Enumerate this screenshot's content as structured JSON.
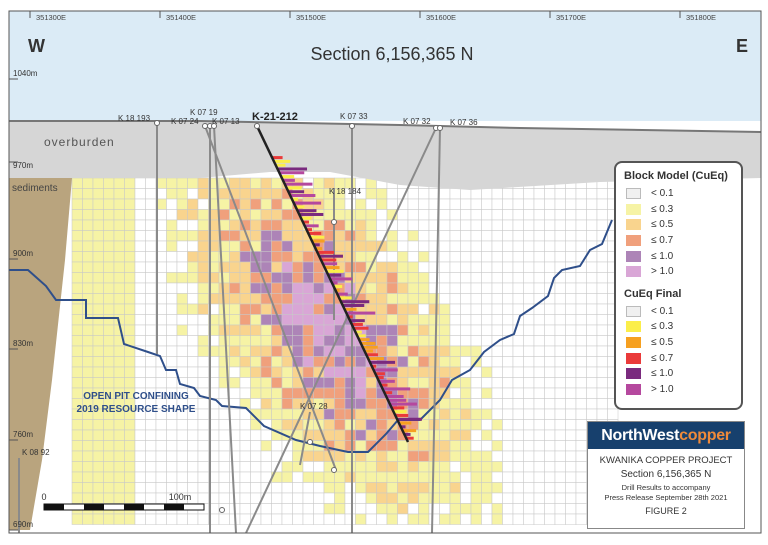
{
  "section_title": "Section 6,156,365 N",
  "compass": {
    "west": "W",
    "east": "E"
  },
  "eastings": [
    "351300E",
    "351400E",
    "351500E",
    "351600E",
    "351700E",
    "351800E"
  ],
  "elevations": [
    "1040m",
    "970m",
    "900m",
    "830m",
    "760m",
    "690m"
  ],
  "units": {
    "overburden": "overburden",
    "sediments": "sediments"
  },
  "pit_label": [
    "OPEN PIT CONFINING",
    "2019 RESOURCE SHAPE"
  ],
  "holes": {
    "main": "K-21-212",
    "others": [
      "K 18 193",
      "K 07 24",
      "K 07 19",
      "K 07 13",
      "K 07 33",
      "K 07 32",
      "K 07 36",
      "K 18 184",
      "K 07 28",
      "K 08 92"
    ]
  },
  "scale_bar": {
    "start": "0",
    "end": "100m"
  },
  "legend": {
    "block_title": "Block Model (CuEq)",
    "block_items": [
      {
        "label": "< 0.1",
        "color": "#f0f0f0"
      },
      {
        "label": "≤ 0.3",
        "color": "#f6f3a5"
      },
      {
        "label": "≤ 0.5",
        "color": "#f9d48e"
      },
      {
        "label": "≤ 0.7",
        "color": "#f0a07c"
      },
      {
        "label": "≤ 1.0",
        "color": "#ad84b7"
      },
      {
        "label": "> 1.0",
        "color": "#d9a6d6"
      }
    ],
    "final_title": "CuEq Final",
    "final_items": [
      {
        "label": "< 0.1",
        "color": "#f0f0f0"
      },
      {
        "label": "≤ 0.3",
        "color": "#fbee4a"
      },
      {
        "label": "≤ 0.5",
        "color": "#f6a020"
      },
      {
        "label": "≤ 0.7",
        "color": "#ea3a3a"
      },
      {
        "label": "≤ 1.0",
        "color": "#7a2a7e"
      },
      {
        "label": "> 1.0",
        "color": "#b5489e"
      }
    ]
  },
  "title_block": {
    "logo_north": "NorthWest",
    "logo_copper": "copper",
    "project": "KWANIKA COPPER PROJECT",
    "section": "Section 6,156,365 N",
    "drill_results": "Drill Results to accompany",
    "press_release": "Press Release September 28th 2021",
    "figure": "FIGURE 2"
  }
}
